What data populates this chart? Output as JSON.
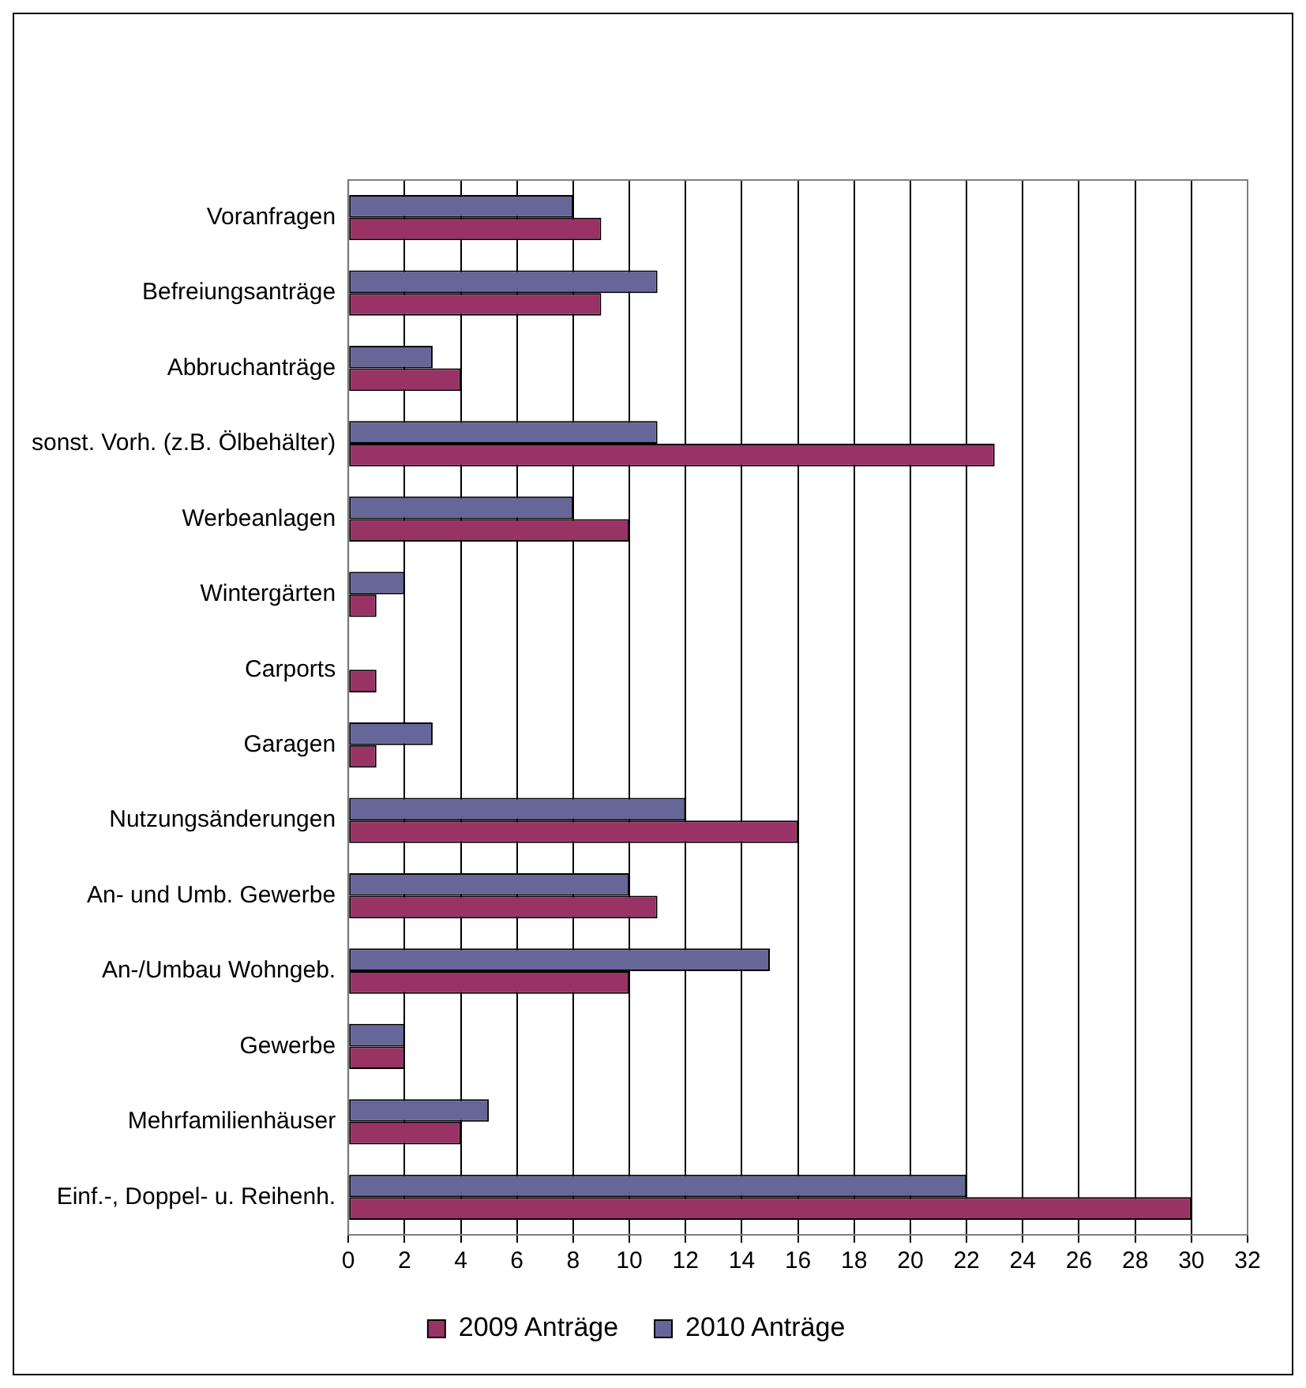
{
  "chart_data": {
    "type": "bar",
    "orientation": "horizontal",
    "categories": [
      "Voranfragen",
      "Befreiungsanträge",
      "Abbruchanträge",
      "sonst. Vorh. (z.B. Ölbehälter)",
      "Werbeanlagen",
      "Wintergärten",
      "Carports",
      "Garagen",
      "Nutzungsänderungen",
      "An- und Umb. Gewerbe",
      "An-/Umbau Wohngeb.",
      "Gewerbe",
      "Mehrfamilienhäuser",
      "Einf.-, Doppel- u. Reihenh."
    ],
    "series": [
      {
        "name": "2009 Anträge",
        "color": "#993366",
        "values": [
          9,
          9,
          4,
          23,
          10,
          1,
          1,
          1,
          16,
          11,
          10,
          2,
          4,
          30
        ]
      },
      {
        "name": "2010 Anträge",
        "color": "#666699",
        "values": [
          8,
          11,
          3,
          11,
          8,
          2,
          0,
          3,
          12,
          10,
          15,
          2,
          5,
          22
        ]
      }
    ],
    "xlim": [
      0,
      32
    ],
    "xticks": [
      0,
      2,
      4,
      6,
      8,
      10,
      12,
      14,
      16,
      18,
      20,
      22,
      24,
      26,
      28,
      30,
      32
    ],
    "grid": "x",
    "legend": "bottom"
  }
}
